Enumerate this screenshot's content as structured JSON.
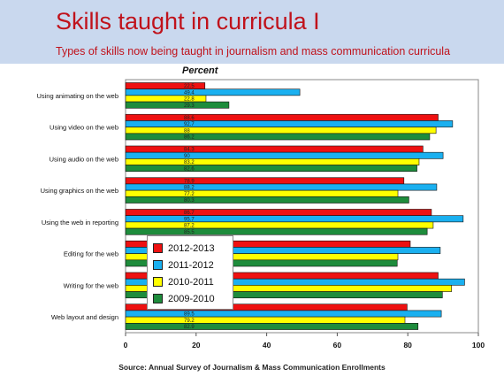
{
  "header": {
    "title": "Skills taught in curricula I",
    "subtitle": "Types of skills now being taught in journalism and mass communication curricula"
  },
  "footer": {
    "source": "Source: Annual Survey of Journalism & Mass Communication Enrollments"
  },
  "chart_data": {
    "type": "bar",
    "orientation": "horizontal",
    "unit_label": "Percent",
    "categories": [
      "Using animating on the web",
      "Using video on the web",
      "Using audio on the web",
      "Using graphics on the web",
      "Using the web in reporting",
      "Editing for the web",
      "Writing for the web",
      "Web layout and design"
    ],
    "series": [
      {
        "name": "2012-2013",
        "color": "#ee1111",
        "values": [
          22.5,
          88.6,
          84.3,
          78.9,
          86.7,
          80.7,
          88.6,
          79.8
        ]
      },
      {
        "name": "2011-2012",
        "color": "#1ab0f0",
        "values": [
          49.4,
          92.7,
          90,
          88.2,
          95.7,
          89.2,
          96.1,
          89.5
        ]
      },
      {
        "name": "2010-2011",
        "color": "#ffff00",
        "values": [
          22.8,
          88,
          83.2,
          77.2,
          87.2,
          77.2,
          92.4,
          79.2
        ]
      },
      {
        "name": "2009-2010",
        "color": "#1e8c3c",
        "values": [
          29.3,
          86.2,
          82.6,
          80.3,
          85.5,
          77,
          89.8,
          82.9
        ]
      }
    ],
    "data_labels": [
      [
        "22.5",
        "49.4",
        "22.8",
        "29.3"
      ],
      [
        "88.6",
        "92.7",
        "88",
        "86.2"
      ],
      [
        "84.3",
        "90",
        "83.2",
        "82.6"
      ],
      [
        "78.9",
        "88.2",
        "77.2",
        "80.3"
      ],
      [
        "86.7",
        "95.7",
        "87.2",
        "85.5"
      ],
      [
        "80.7",
        "89.2",
        "77.2",
        "77"
      ],
      [
        "88.6",
        "96.1",
        "92.4",
        "89.8"
      ],
      [
        "79.8",
        "89.5",
        "79.2",
        "82.9"
      ]
    ],
    "x_ticks": [
      "0",
      "20",
      "40",
      "60",
      "80",
      "100"
    ],
    "xlim": [
      0,
      100
    ],
    "grid": false,
    "legend_position": "lower-left"
  }
}
